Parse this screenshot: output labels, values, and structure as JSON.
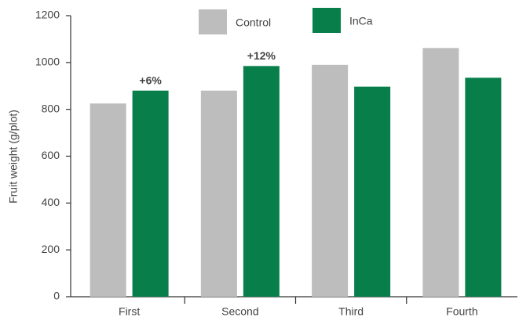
{
  "chart_data": {
    "type": "bar",
    "categories": [
      "First",
      "Second",
      "Third",
      "Fourth"
    ],
    "series": [
      {
        "name": "Control",
        "color": "#bdbdbd",
        "values": [
          825,
          880,
          990,
          1062
        ]
      },
      {
        "name": "InCa",
        "color": "#087f4b",
        "values": [
          880,
          985,
          897,
          935
        ]
      }
    ],
    "annotations": [
      "+6%",
      "+12%"
    ],
    "y_label": "Fruit weight (g/plot)",
    "ylim": [
      0,
      1200
    ],
    "yticks": [
      0,
      200,
      400,
      600,
      800,
      1000,
      1200
    ],
    "grid": false
  }
}
